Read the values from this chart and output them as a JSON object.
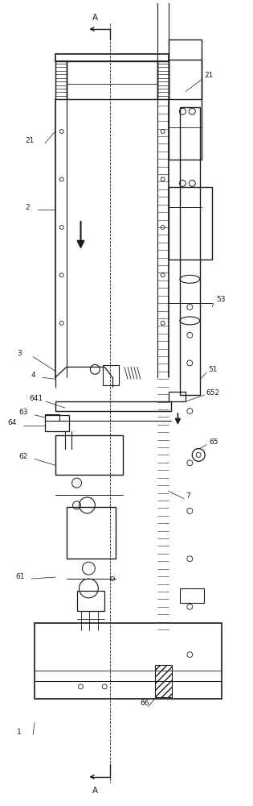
{
  "bg_color": "#ffffff",
  "line_color": "#1a1a1a",
  "fig_width": 3.15,
  "fig_height": 10.0,
  "dpi": 100
}
